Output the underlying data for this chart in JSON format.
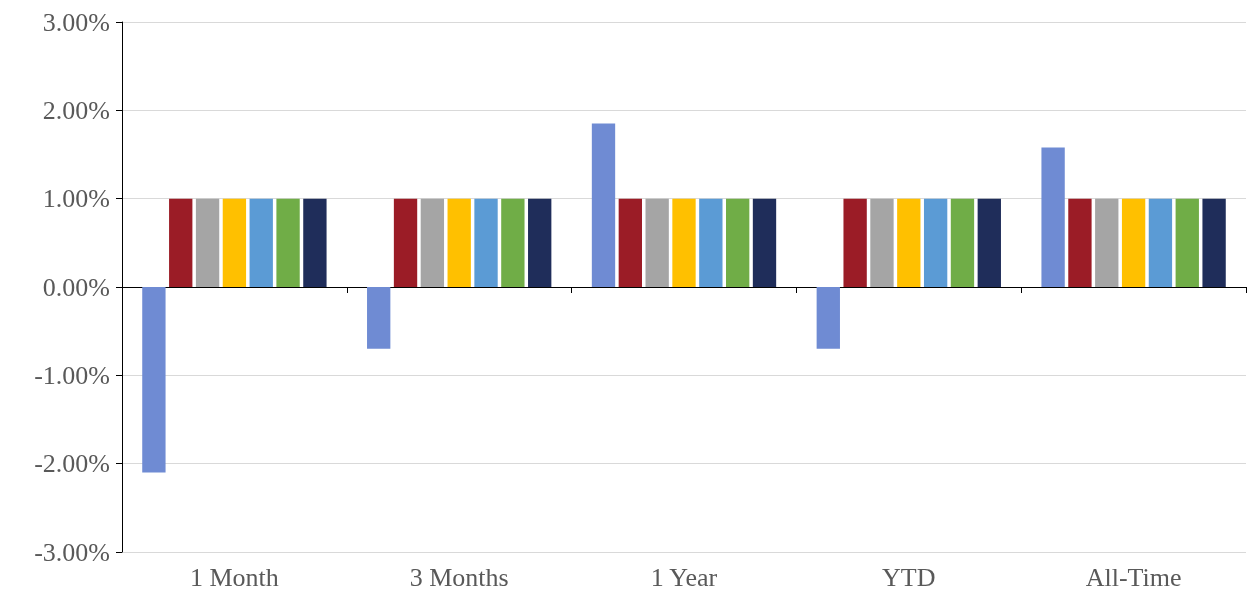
{
  "chart_data": {
    "type": "bar",
    "categories": [
      "1 Month",
      "3 Months",
      "1 Year",
      "YTD",
      "All-Time"
    ],
    "series": [
      {
        "color": "#6f8bd3",
        "values": [
          -2.1,
          -0.7,
          1.85,
          -0.7,
          1.58
        ]
      },
      {
        "color": "#9b1c26",
        "values": [
          1,
          1,
          1,
          1,
          1
        ]
      },
      {
        "color": "#a5a5a5",
        "values": [
          1,
          1,
          1,
          1,
          1
        ]
      },
      {
        "color": "#ffc000",
        "values": [
          1,
          1,
          1,
          1,
          1
        ]
      },
      {
        "color": "#5b9bd5",
        "values": [
          1,
          1,
          1,
          1,
          1
        ]
      },
      {
        "color": "#70ad47",
        "values": [
          1,
          1,
          1,
          1,
          1
        ]
      },
      {
        "color": "#1f2d5a",
        "values": [
          1,
          1,
          1,
          1,
          1
        ]
      }
    ],
    "ylim": [
      -3,
      3
    ],
    "yticks": [
      {
        "value": -3,
        "label": "-3.00%"
      },
      {
        "value": -2,
        "label": "-2.00%"
      },
      {
        "value": -1,
        "label": "-1.00%"
      },
      {
        "value": 0,
        "label": "0.00%"
      },
      {
        "value": 1,
        "label": "1.00%"
      },
      {
        "value": 2,
        "label": "2.00%"
      },
      {
        "value": 3,
        "label": "3.00%"
      }
    ],
    "grid": "y"
  }
}
